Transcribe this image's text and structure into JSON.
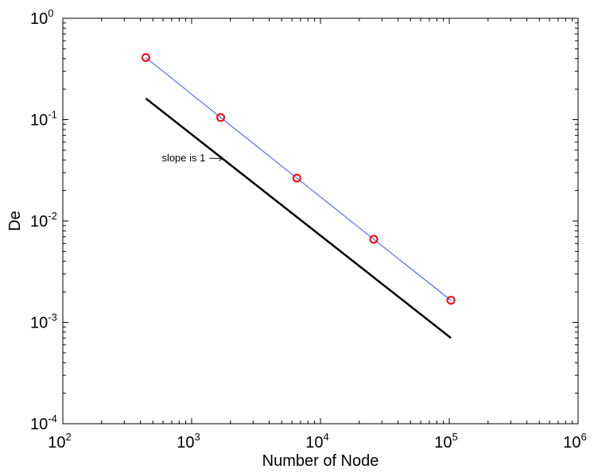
{
  "chart_data": {
    "type": "line",
    "xlabel": "Number of Node",
    "ylabel": "De",
    "xscale": "log",
    "yscale": "log",
    "xlim": [
      100,
      1000000
    ],
    "ylim": [
      0.0001,
      1
    ],
    "x_ticks": [
      {
        "base": "10",
        "exp": "2"
      },
      {
        "base": "10",
        "exp": "3"
      },
      {
        "base": "10",
        "exp": "4"
      },
      {
        "base": "10",
        "exp": "5"
      },
      {
        "base": "10",
        "exp": "6"
      }
    ],
    "y_ticks": [
      {
        "base": "10",
        "exp": "-4"
      },
      {
        "base": "10",
        "exp": "-3"
      },
      {
        "base": "10",
        "exp": "-2"
      },
      {
        "base": "10",
        "exp": "-1"
      },
      {
        "base": "10",
        "exp": "0"
      }
    ],
    "grid": false,
    "series": [
      {
        "color": "#3355ff",
        "marker": "circle",
        "marker_color": "#ff0000",
        "x": [
          441,
          1681,
          6561,
          25921,
          103041
        ],
        "y": [
          0.41,
          0.105,
          0.0265,
          0.0066,
          0.00165
        ]
      },
      {
        "color": "#000000",
        "marker": "none",
        "x": [
          441,
          103041
        ],
        "y": [
          0.162,
          0.0007
        ]
      }
    ],
    "annotations": [
      {
        "text": "slope is 1",
        "arrow": true,
        "target": [
          1750,
          0.0415
        ]
      }
    ]
  }
}
